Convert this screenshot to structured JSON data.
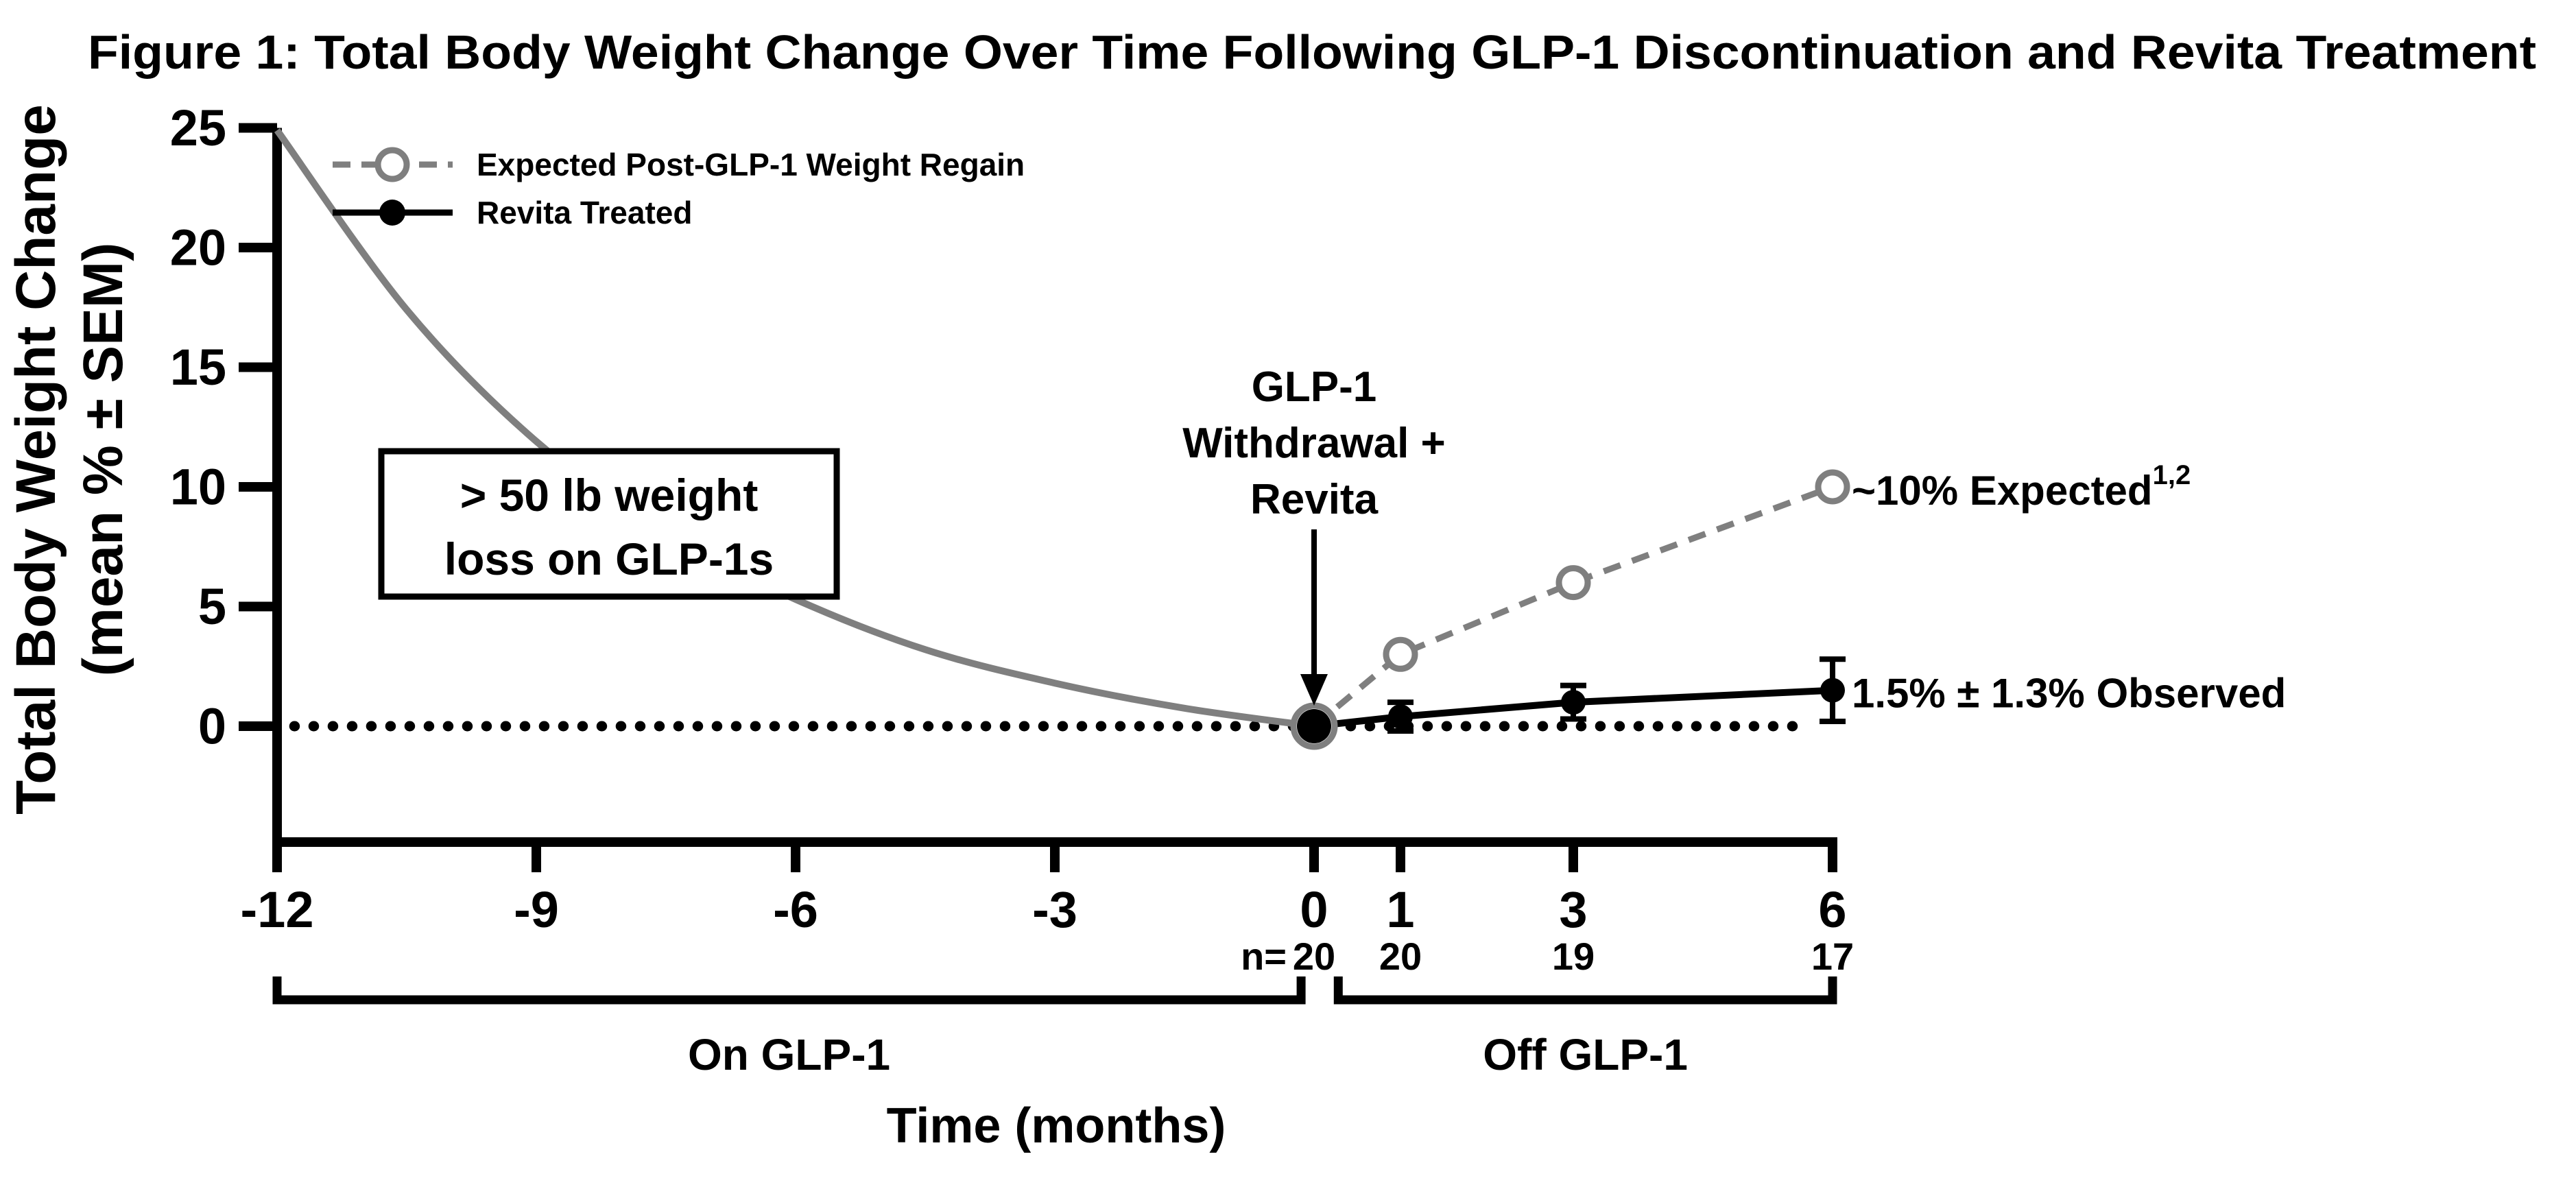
{
  "figure": {
    "title": "Figure 1: Total Body Weight Change Over Time Following GLP-1 Discontinuation and Revita Treatment"
  },
  "colors": {
    "black": "#000000",
    "gray": "#7f7f7f",
    "white": "#ffffff"
  },
  "chart_data": {
    "type": "line",
    "title": "Figure 1: Total Body Weight Change Over Time Following GLP-1 Discontinuation and Revita Treatment",
    "xlabel": "Time (months)",
    "ylabel_line1": "Total Body Weight Change",
    "ylabel_line2": "(mean % ± SEM)",
    "xlim": [
      -12,
      6
    ],
    "ylim": [
      -4.8,
      25
    ],
    "x_ticks": [
      -12,
      -9,
      -6,
      -3,
      0,
      1,
      3,
      6
    ],
    "y_ticks": [
      0,
      5,
      10,
      15,
      20,
      25
    ],
    "grid": false,
    "legend_position": "top-left",
    "zero_reference_line": {
      "y": 0,
      "style": "dotted",
      "color": "#000000",
      "x_start": -11.8,
      "x_end": 5.75
    },
    "pre_glp1_curve": {
      "name": "On GLP-1 weight loss (lead-in)",
      "color": "#7f7f7f",
      "style": "solid",
      "x": [
        -12,
        -10.5,
        -9,
        -7.5,
        -6,
        -4.5,
        -3,
        -1.5,
        0
      ],
      "y": [
        24.9,
        17.4,
        11.9,
        8.0,
        5.3,
        3.2,
        1.8,
        0.75,
        0
      ]
    },
    "series": [
      {
        "name": "Expected Post-GLP-1 Weight Regain",
        "color": "#7f7f7f",
        "style": "dashed",
        "marker": "open-circle",
        "x": [
          0,
          1,
          3,
          6
        ],
        "y": [
          0,
          3,
          6,
          10
        ]
      },
      {
        "name": "Revita Treated",
        "color": "#000000",
        "style": "solid",
        "marker": "filled-circle",
        "x": [
          0,
          1,
          3,
          6
        ],
        "y": [
          0,
          0.4,
          1.0,
          1.5
        ],
        "sem": [
          0,
          0.6,
          0.7,
          1.3
        ]
      }
    ],
    "n_row": {
      "prefix": "n=",
      "months": [
        0,
        1,
        3,
        6
      ],
      "values": [
        "20",
        "20",
        "19",
        "17"
      ]
    },
    "phase_brackets": [
      {
        "label": "On GLP-1",
        "from": -12,
        "to": -0.15
      },
      {
        "label": "Off GLP-1",
        "from": 0.28,
        "to": 6
      }
    ]
  },
  "annotations": {
    "weight_loss_box": {
      "line1": "> 50 lb weight",
      "line2": "loss on GLP-1s"
    },
    "withdrawal": {
      "line1": "GLP-1",
      "line2": "Withdrawal +",
      "line3": "Revita"
    },
    "expected_label": {
      "main": "~10% Expected",
      "sup": "1,2"
    },
    "observed_label": "1.5% ± 1.3% Observed"
  }
}
